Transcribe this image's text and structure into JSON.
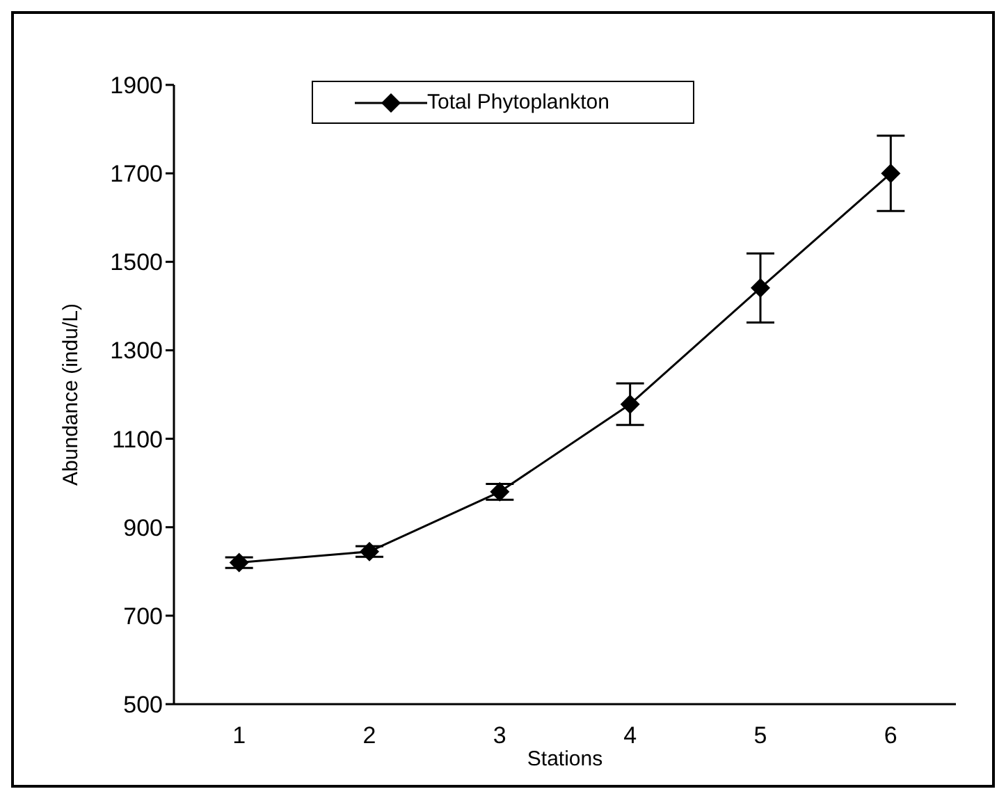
{
  "chart_data": {
    "type": "line",
    "xlabel": "Stations",
    "ylabel": "Abundance (indu/L)",
    "categories": [
      "1",
      "2",
      "3",
      "4",
      "5",
      "6"
    ],
    "series": [
      {
        "name": "Total Phytoplankton",
        "color": "#000000",
        "values": [
          820,
          845,
          980,
          1178,
          1441,
          1700
        ],
        "errors": [
          12,
          12,
          18,
          47,
          78,
          85
        ]
      }
    ],
    "ylim": [
      500,
      1900
    ],
    "yticks": [
      500,
      700,
      900,
      1100,
      1300,
      1500,
      1700,
      1900
    ],
    "grid": false,
    "legend": "top",
    "marker": "diamond",
    "line_style": "solid"
  }
}
